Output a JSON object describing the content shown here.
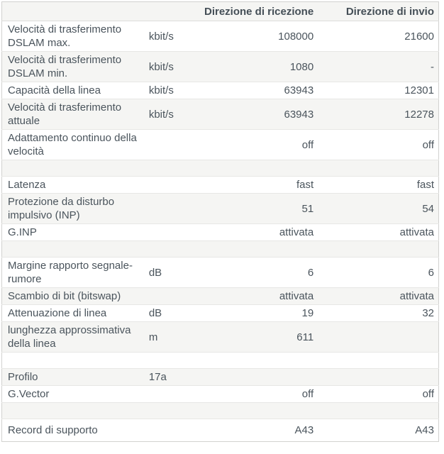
{
  "table": {
    "header": {
      "col_receive": "Direzione di ricezione",
      "col_send": "Direzione di invio"
    },
    "rows": [
      {
        "label": "Velocità di trasferimento DSLAM max.",
        "unit": "kbit/s",
        "receive": "108000",
        "send": "21600"
      },
      {
        "label": "Velocità di trasferimento DSLAM min.",
        "unit": "kbit/s",
        "receive": "1080",
        "send": "-"
      },
      {
        "label": "Capacità della linea",
        "unit": "kbit/s",
        "receive": "63943",
        "send": "12301"
      },
      {
        "label": "Velocità di trasferimento attuale",
        "unit": "kbit/s",
        "receive": "63943",
        "send": "12278"
      },
      {
        "label": "Adattamento continuo della velocità",
        "unit": "",
        "receive": "off",
        "send": "off"
      },
      {
        "label": "",
        "unit": "",
        "receive": "",
        "send": ""
      },
      {
        "label": "Latenza",
        "unit": "",
        "receive": "fast",
        "send": "fast"
      },
      {
        "label": "Protezione da disturbo impulsivo (INP)",
        "unit": "",
        "receive": "51",
        "send": "54"
      },
      {
        "label": "G.INP",
        "unit": "",
        "receive": "attivata",
        "send": "attivata"
      },
      {
        "label": "",
        "unit": "",
        "receive": "",
        "send": ""
      },
      {
        "label": "Margine rapporto segnale-rumore",
        "unit": "dB",
        "receive": "6",
        "send": "6"
      },
      {
        "label": "Scambio di bit (bitswap)",
        "unit": "",
        "receive": "attivata",
        "send": "attivata"
      },
      {
        "label": "Attenuazione di linea",
        "unit": "dB",
        "receive": "19",
        "send": "32"
      },
      {
        "label": "lunghezza approssimativa della linea",
        "unit": "m",
        "receive": "611",
        "send": ""
      },
      {
        "label": "",
        "unit": "",
        "receive": "",
        "send": ""
      },
      {
        "label": "Profilo",
        "unit": "17a",
        "receive": "",
        "send": ""
      },
      {
        "label": "G.Vector",
        "unit": "",
        "receive": "off",
        "send": "off"
      },
      {
        "label": "",
        "unit": "",
        "receive": "",
        "send": ""
      },
      {
        "label": "Record di supporto",
        "unit": "",
        "receive": "A43",
        "send": "A43"
      }
    ]
  },
  "colors": {
    "row_alt_background": "#f5f5f3",
    "row_background": "#ffffff",
    "border": "#d2d2d0",
    "row_divider": "#e7e7e5",
    "text": "#4a545c",
    "header_text": "#454f57"
  }
}
